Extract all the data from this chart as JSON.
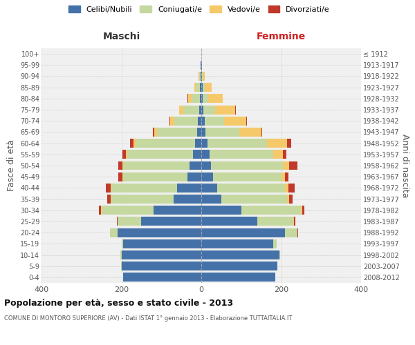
{
  "age_groups": [
    "0-4",
    "5-9",
    "10-14",
    "15-19",
    "20-24",
    "25-29",
    "30-34",
    "35-39",
    "40-44",
    "45-49",
    "50-54",
    "55-59",
    "60-64",
    "65-69",
    "70-74",
    "75-79",
    "80-84",
    "85-89",
    "90-94",
    "95-99",
    "100+"
  ],
  "birth_years": [
    "2008-2012",
    "2003-2007",
    "1998-2002",
    "1993-1997",
    "1988-1992",
    "1983-1987",
    "1978-1982",
    "1973-1977",
    "1968-1972",
    "1963-1967",
    "1958-1962",
    "1953-1957",
    "1948-1952",
    "1943-1947",
    "1938-1942",
    "1933-1937",
    "1928-1932",
    "1923-1927",
    "1918-1922",
    "1913-1917",
    "≤ 1912"
  ],
  "males": {
    "celibi": [
      195,
      200,
      200,
      195,
      210,
      150,
      120,
      70,
      60,
      35,
      30,
      20,
      15,
      10,
      8,
      5,
      3,
      3,
      2,
      1,
      0
    ],
    "coniugati": [
      0,
      1,
      2,
      5,
      18,
      60,
      130,
      155,
      165,
      160,
      165,
      165,
      150,
      100,
      60,
      40,
      22,
      10,
      3,
      0,
      0
    ],
    "vedovi": [
      0,
      0,
      0,
      0,
      0,
      0,
      1,
      1,
      2,
      2,
      3,
      4,
      5,
      8,
      10,
      10,
      8,
      5,
      2,
      0,
      0
    ],
    "divorziati": [
      0,
      0,
      0,
      0,
      1,
      2,
      5,
      10,
      12,
      10,
      10,
      8,
      8,
      3,
      2,
      1,
      1,
      0,
      0,
      0,
      0
    ]
  },
  "females": {
    "nubili": [
      185,
      190,
      195,
      180,
      210,
      140,
      100,
      50,
      40,
      30,
      25,
      20,
      15,
      10,
      8,
      5,
      3,
      3,
      2,
      1,
      0
    ],
    "coniugate": [
      0,
      1,
      2,
      8,
      30,
      90,
      150,
      165,
      170,
      170,
      180,
      160,
      150,
      85,
      50,
      30,
      15,
      5,
      2,
      0,
      0
    ],
    "vedove": [
      0,
      0,
      0,
      0,
      1,
      2,
      3,
      5,
      8,
      10,
      15,
      25,
      50,
      55,
      55,
      50,
      35,
      18,
      5,
      1,
      0
    ],
    "divorziate": [
      0,
      0,
      0,
      0,
      2,
      3,
      5,
      8,
      15,
      8,
      20,
      8,
      10,
      3,
      2,
      1,
      0,
      0,
      0,
      0,
      0
    ]
  },
  "colors": {
    "celibi_nubili": "#4472a8",
    "coniugati": "#c5d8a0",
    "vedovi": "#f5c96a",
    "divorziati": "#c0392b"
  },
  "title": "Popolazione per età, sesso e stato civile - 2013",
  "subtitle": "COMUNE DI MONTORO SUPERIORE (AV) - Dati ISTAT 1° gennaio 2013 - Elaborazione TUTTAITALIA.IT",
  "ylabel_left": "Fasce di età",
  "ylabel_right": "Anni di nascita",
  "xlabel_left": "Maschi",
  "xlabel_right": "Femmine",
  "xlim": 400,
  "background_color": "#ffffff",
  "grid_color": "#cccccc"
}
